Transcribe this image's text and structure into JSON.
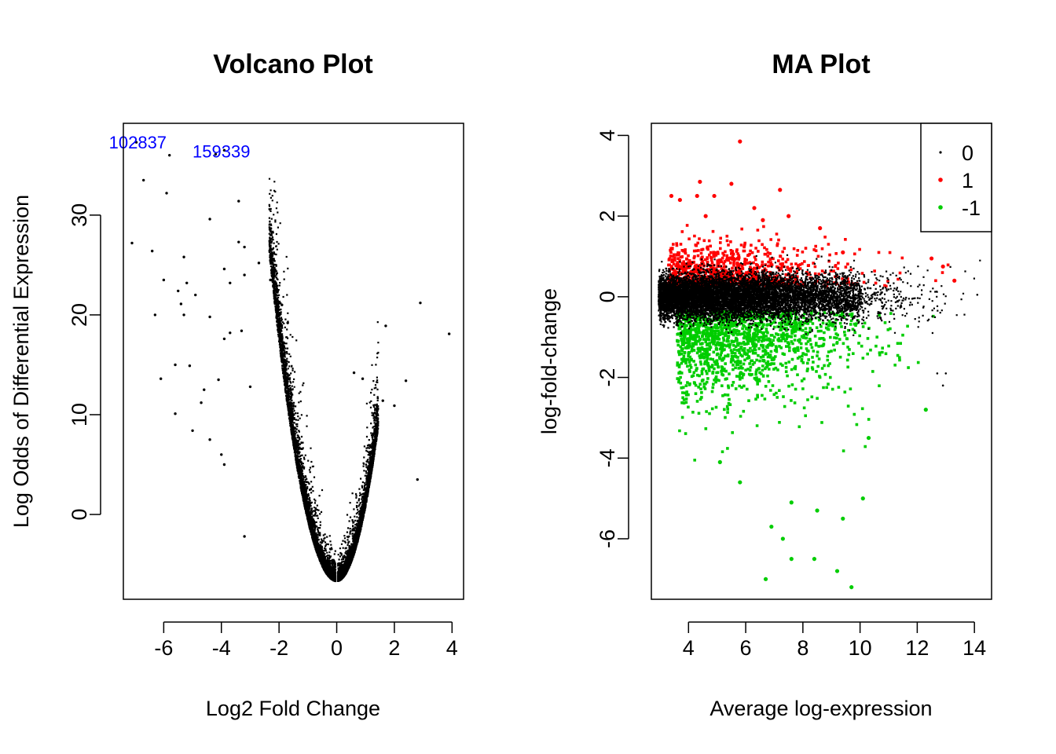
{
  "chart_data": [
    {
      "type": "scatter",
      "title": "Volcano Plot",
      "xlabel": "Log2 Fold Change",
      "ylabel": "Log Odds of Differential Expression",
      "xlim": [
        -7.4,
        4.4
      ],
      "ylim": [
        -8.5,
        39.2
      ],
      "xticks": [
        "-6",
        "-4",
        "-2",
        "0",
        "2",
        "4"
      ],
      "yticks": [
        "0",
        "10",
        "20",
        "30"
      ],
      "point_color": "#000000",
      "annotation_color": "#0000ff",
      "annotations": [
        {
          "label": "102837",
          "x": -6.9,
          "y": 37.3
        },
        {
          "label": "159339",
          "x": -4.0,
          "y": 36.4
        }
      ],
      "highlight_points": [
        {
          "x": -6.95,
          "y": 37.3
        },
        {
          "x": -5.8,
          "y": 36.0
        },
        {
          "x": -3.9,
          "y": 36.5
        },
        {
          "x": -4.2,
          "y": 36.1
        },
        {
          "x": -6.7,
          "y": 33.5
        },
        {
          "x": -5.9,
          "y": 32.2
        },
        {
          "x": -3.4,
          "y": 31.4
        },
        {
          "x": -4.4,
          "y": 29.6
        },
        {
          "x": -7.1,
          "y": 27.2
        },
        {
          "x": -6.4,
          "y": 26.4
        },
        {
          "x": -3.4,
          "y": 27.3
        },
        {
          "x": -5.3,
          "y": 25.8
        },
        {
          "x": -2.7,
          "y": 25.2
        },
        {
          "x": -3.2,
          "y": 26.8
        },
        {
          "x": -3.9,
          "y": 24.6
        },
        {
          "x": -3.2,
          "y": 24.0
        },
        {
          "x": -6.0,
          "y": 23.5
        },
        {
          "x": -5.2,
          "y": 23.2
        },
        {
          "x": -5.5,
          "y": 22.4
        },
        {
          "x": -3.7,
          "y": 23.2
        },
        {
          "x": -2.3,
          "y": 23.5
        },
        {
          "x": -5.4,
          "y": 21.1
        },
        {
          "x": -4.9,
          "y": 22.0
        },
        {
          "x": -6.3,
          "y": 20.0
        },
        {
          "x": -5.3,
          "y": 20.0
        },
        {
          "x": -4.4,
          "y": 19.8
        },
        {
          "x": -1.9,
          "y": 21.0
        },
        {
          "x": -1.7,
          "y": 19.2
        },
        {
          "x": -3.7,
          "y": 18.2
        },
        {
          "x": -3.3,
          "y": 18.4
        },
        {
          "x": -3.9,
          "y": 17.6
        },
        {
          "x": 1.7,
          "y": 18.9
        },
        {
          "x": 2.9,
          "y": 21.2
        },
        {
          "x": 3.9,
          "y": 18.1
        },
        {
          "x": -5.6,
          "y": 15.0
        },
        {
          "x": -5.1,
          "y": 14.9
        },
        {
          "x": -6.1,
          "y": 13.6
        },
        {
          "x": -5.6,
          "y": 10.1
        },
        {
          "x": 0.6,
          "y": 14.2
        },
        {
          "x": 0.9,
          "y": 13.6
        },
        {
          "x": 2.4,
          "y": 13.4
        },
        {
          "x": 1.6,
          "y": 11.4
        },
        {
          "x": 2.0,
          "y": 10.9
        },
        {
          "x": 2.8,
          "y": 3.5
        },
        {
          "x": -4.6,
          "y": 12.5
        },
        {
          "x": -4.1,
          "y": 13.5
        },
        {
          "x": -4.7,
          "y": 11.2
        },
        {
          "x": -3.0,
          "y": 12.8
        },
        {
          "x": -5.0,
          "y": 8.4
        },
        {
          "x": -4.4,
          "y": 7.5
        },
        {
          "x": -4.0,
          "y": 6.0
        },
        {
          "x": -3.9,
          "y": 5.0
        },
        {
          "x": -3.2,
          "y": -2.2
        }
      ]
    },
    {
      "type": "scatter",
      "title": "MA Plot",
      "xlabel": "Average log-expression",
      "ylabel": "log-fold-change",
      "xlim": [
        2.7,
        14.6
      ],
      "ylim": [
        -7.5,
        4.3
      ],
      "xticks": [
        "4",
        "6",
        "8",
        "10",
        "12",
        "14"
      ],
      "yticks": [
        "-6",
        "-4",
        "-2",
        "0",
        "2",
        "4"
      ],
      "legend": {
        "placement": "top-right",
        "entries": [
          {
            "label": "0",
            "color": "#000000"
          },
          {
            "label": "1",
            "color": "#ff0000"
          },
          {
            "label": "-1",
            "color": "#00cd00"
          }
        ]
      },
      "highlight_points": [
        {
          "x": 5.8,
          "y": 3.85,
          "group": "1"
        },
        {
          "x": 4.4,
          "y": 2.85,
          "group": "1"
        },
        {
          "x": 5.5,
          "y": 2.8,
          "group": "1"
        },
        {
          "x": 7.2,
          "y": 2.65,
          "group": "1"
        },
        {
          "x": 3.4,
          "y": 2.5,
          "group": "1"
        },
        {
          "x": 3.7,
          "y": 2.4,
          "group": "1"
        },
        {
          "x": 4.3,
          "y": 2.5,
          "group": "1"
        },
        {
          "x": 4.9,
          "y": 2.5,
          "group": "1"
        },
        {
          "x": 6.3,
          "y": 2.2,
          "group": "1"
        },
        {
          "x": 4.6,
          "y": 2.0,
          "group": "1"
        },
        {
          "x": 6.6,
          "y": 1.9,
          "group": "1"
        },
        {
          "x": 7.5,
          "y": 2.0,
          "group": "1"
        },
        {
          "x": 8.6,
          "y": 1.7,
          "group": "1"
        },
        {
          "x": 9.4,
          "y": 1.1,
          "group": "1"
        },
        {
          "x": 12.5,
          "y": 0.95,
          "group": "1"
        },
        {
          "x": 12.9,
          "y": 0.75,
          "group": "1"
        },
        {
          "x": 13.3,
          "y": 0.4,
          "group": "1"
        },
        {
          "x": 6.7,
          "y": -7.0,
          "group": "-1"
        },
        {
          "x": 9.7,
          "y": -7.2,
          "group": "-1"
        },
        {
          "x": 9.2,
          "y": -6.8,
          "group": "-1"
        },
        {
          "x": 7.3,
          "y": -6.0,
          "group": "-1"
        },
        {
          "x": 7.6,
          "y": -6.5,
          "group": "-1"
        },
        {
          "x": 6.9,
          "y": -5.7,
          "group": "-1"
        },
        {
          "x": 8.4,
          "y": -6.5,
          "group": "-1"
        },
        {
          "x": 9.4,
          "y": -5.5,
          "group": "-1"
        },
        {
          "x": 10.1,
          "y": -5.0,
          "group": "-1"
        },
        {
          "x": 7.6,
          "y": -5.1,
          "group": "-1"
        },
        {
          "x": 8.5,
          "y": -5.3,
          "group": "-1"
        },
        {
          "x": 10.3,
          "y": -3.5,
          "group": "-1"
        },
        {
          "x": 12.3,
          "y": -2.8,
          "group": "-1"
        },
        {
          "x": 5.8,
          "y": -4.6,
          "group": "-1"
        },
        {
          "x": 5.1,
          "y": -4.1,
          "group": "-1"
        },
        {
          "x": 12.7,
          "y": -1.9,
          "group": "0"
        },
        {
          "x": 12.9,
          "y": -2.2,
          "group": "0"
        },
        {
          "x": 13.0,
          "y": -1.9,
          "group": "0"
        },
        {
          "x": 14.1,
          "y": 0.05,
          "group": "0"
        }
      ]
    }
  ]
}
